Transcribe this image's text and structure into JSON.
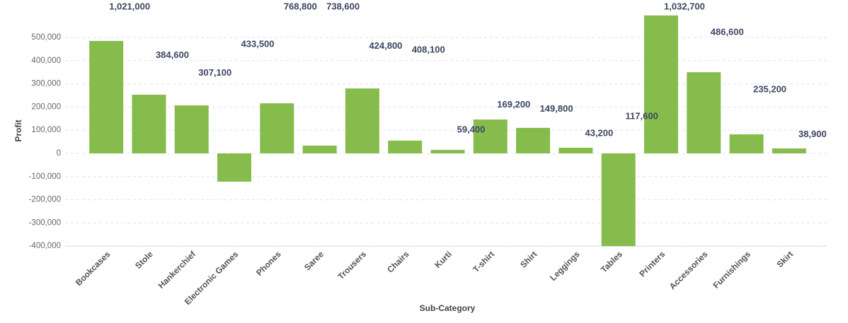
{
  "chart_data": {
    "type": "bar",
    "x_label": "Sub-Category",
    "y_label": "Profit",
    "categories": [
      "Bookcases",
      "Stole",
      "Hankerchief",
      "Electronic Games",
      "Phones",
      "Saree",
      "Trousers",
      "Chairs",
      "Kurti",
      "T-shirt",
      "Shirt",
      "Leggings",
      "Tables",
      "Printers",
      "Accessories",
      "Furnishings",
      "Skirt"
    ],
    "values": [
      485000,
      253000,
      207000,
      -122000,
      216000,
      33500,
      280000,
      55000,
      15000,
      146000,
      110000,
      24400,
      -400000,
      595000,
      350000,
      82000,
      21300
    ],
    "data_labels": [
      "1,021,000",
      "384,600",
      "307,100",
      "433,500",
      "768,800",
      "738,600",
      "424,800",
      "408,100",
      "59,400",
      "169,200",
      "149,800",
      "43,200",
      "117,600",
      "1,032,700",
      "486,600",
      "235,200",
      "38,900"
    ],
    "color": "#86bc4b",
    "ylim": [
      -400000,
      600000
    ],
    "yticks": [
      {
        "value": -400000,
        "label": "-400,000"
      },
      {
        "value": -300000,
        "label": "-300,000"
      },
      {
        "value": -200000,
        "label": "-200,000"
      },
      {
        "value": -100000,
        "label": "-100,000"
      },
      0,
      {
        "value": 100000,
        "label": "100,000"
      },
      {
        "value": 200000,
        "label": "200,000"
      },
      {
        "value": 300000,
        "label": "300,000"
      },
      {
        "value": 400000,
        "label": "400,000"
      },
      {
        "value": 500000,
        "label": "500,000"
      }
    ],
    "grid": true
  }
}
